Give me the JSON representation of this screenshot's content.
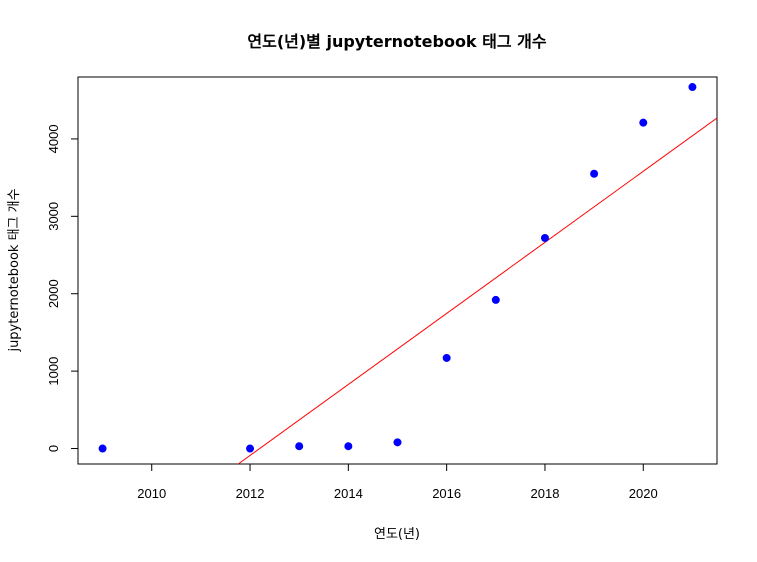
{
  "chart_data": {
    "type": "scatter",
    "title": "연도(년)별 jupyternotebook 태그 개수",
    "xlabel": "연도(년)",
    "ylabel": "jupyternotebook 태그 개수",
    "xlim": [
      2008.5,
      2021.5
    ],
    "ylim": [
      -200,
      4800
    ],
    "xticks": [
      2010,
      2012,
      2014,
      2016,
      2018,
      2020
    ],
    "yticks": [
      0,
      1000,
      2000,
      3000,
      4000
    ],
    "grid": false,
    "legend": "none",
    "point_color": "#0000ff",
    "line_color": "#ff0000",
    "points": [
      {
        "x": 2009,
        "y": 0
      },
      {
        "x": 2012,
        "y": 0
      },
      {
        "x": 2013,
        "y": 30
      },
      {
        "x": 2014,
        "y": 30
      },
      {
        "x": 2015,
        "y": 80
      },
      {
        "x": 2016,
        "y": 1170
      },
      {
        "x": 2017,
        "y": 1920
      },
      {
        "x": 2018,
        "y": 2720
      },
      {
        "x": 2019,
        "y": 3550
      },
      {
        "x": 2020,
        "y": 4210
      },
      {
        "x": 2021,
        "y": 4670
      }
    ],
    "regression_line": [
      {
        "x": 2011.76,
        "y": -200
      },
      {
        "x": 2021.5,
        "y": 4270
      }
    ]
  }
}
